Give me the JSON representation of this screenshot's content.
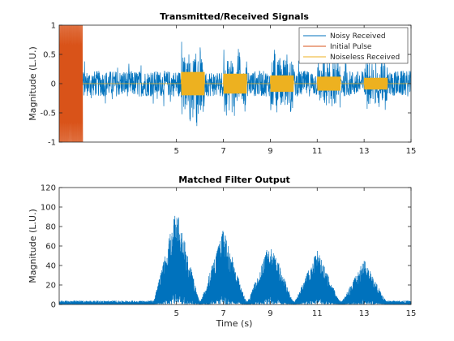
{
  "chart_data": [
    {
      "type": "line",
      "title": "Transmitted/Received Signals",
      "xlabel": "",
      "ylabel": "Magnitude (L.U.)",
      "xlim": [
        0,
        15
      ],
      "ylim": [
        -1,
        1
      ],
      "xticks": [
        5,
        7,
        9,
        11,
        13,
        15
      ],
      "yticks": [
        -1,
        -0.5,
        0,
        0.5,
        1
      ],
      "ytick_labels": [
        "-1",
        "-0.5",
        "0",
        "0.5",
        "1"
      ],
      "legend": "top-right",
      "grid": false,
      "series": [
        {
          "name": "Noisy Received",
          "color": "#0072BD",
          "noise_amplitude": 0.22,
          "noise_peak": 0.4,
          "pulse_centers": [
            5.7,
            7.5,
            9.5,
            11.5,
            13.5
          ],
          "pulse_amplitudes": [
            0.5,
            0.42,
            0.36,
            0.32,
            0.28
          ]
        },
        {
          "name": "Initial Pulse",
          "color": "#D95319",
          "x_range": [
            0,
            1
          ],
          "amplitude": 1
        },
        {
          "name": "Noiseless Received",
          "color": "#EDB120",
          "pulse_centers": [
            5.7,
            7.5,
            9.5,
            11.5,
            13.5
          ],
          "pulse_width": 1,
          "pulse_amplitudes": [
            0.2,
            0.17,
            0.14,
            0.12,
            0.1
          ]
        }
      ]
    },
    {
      "type": "line",
      "title": "Matched Filter Output",
      "xlabel": "Time (s)",
      "ylabel": "Magnitude (L.U.)",
      "xlim": [
        0,
        15
      ],
      "ylim": [
        0,
        120
      ],
      "xticks": [
        5,
        7,
        9,
        11,
        13,
        15
      ],
      "yticks": [
        0,
        20,
        40,
        60,
        80,
        100,
        120
      ],
      "grid": false,
      "series": [
        {
          "name": "",
          "color": "#0072BD",
          "baseline": 4,
          "peaks": [
            {
              "x": 5,
              "y": 100
            },
            {
              "x": 7,
              "y": 78
            },
            {
              "x": 9,
              "y": 67
            },
            {
              "x": 11,
              "y": 56
            },
            {
              "x": 13,
              "y": 46
            }
          ],
          "half_width": 1
        }
      ]
    }
  ]
}
